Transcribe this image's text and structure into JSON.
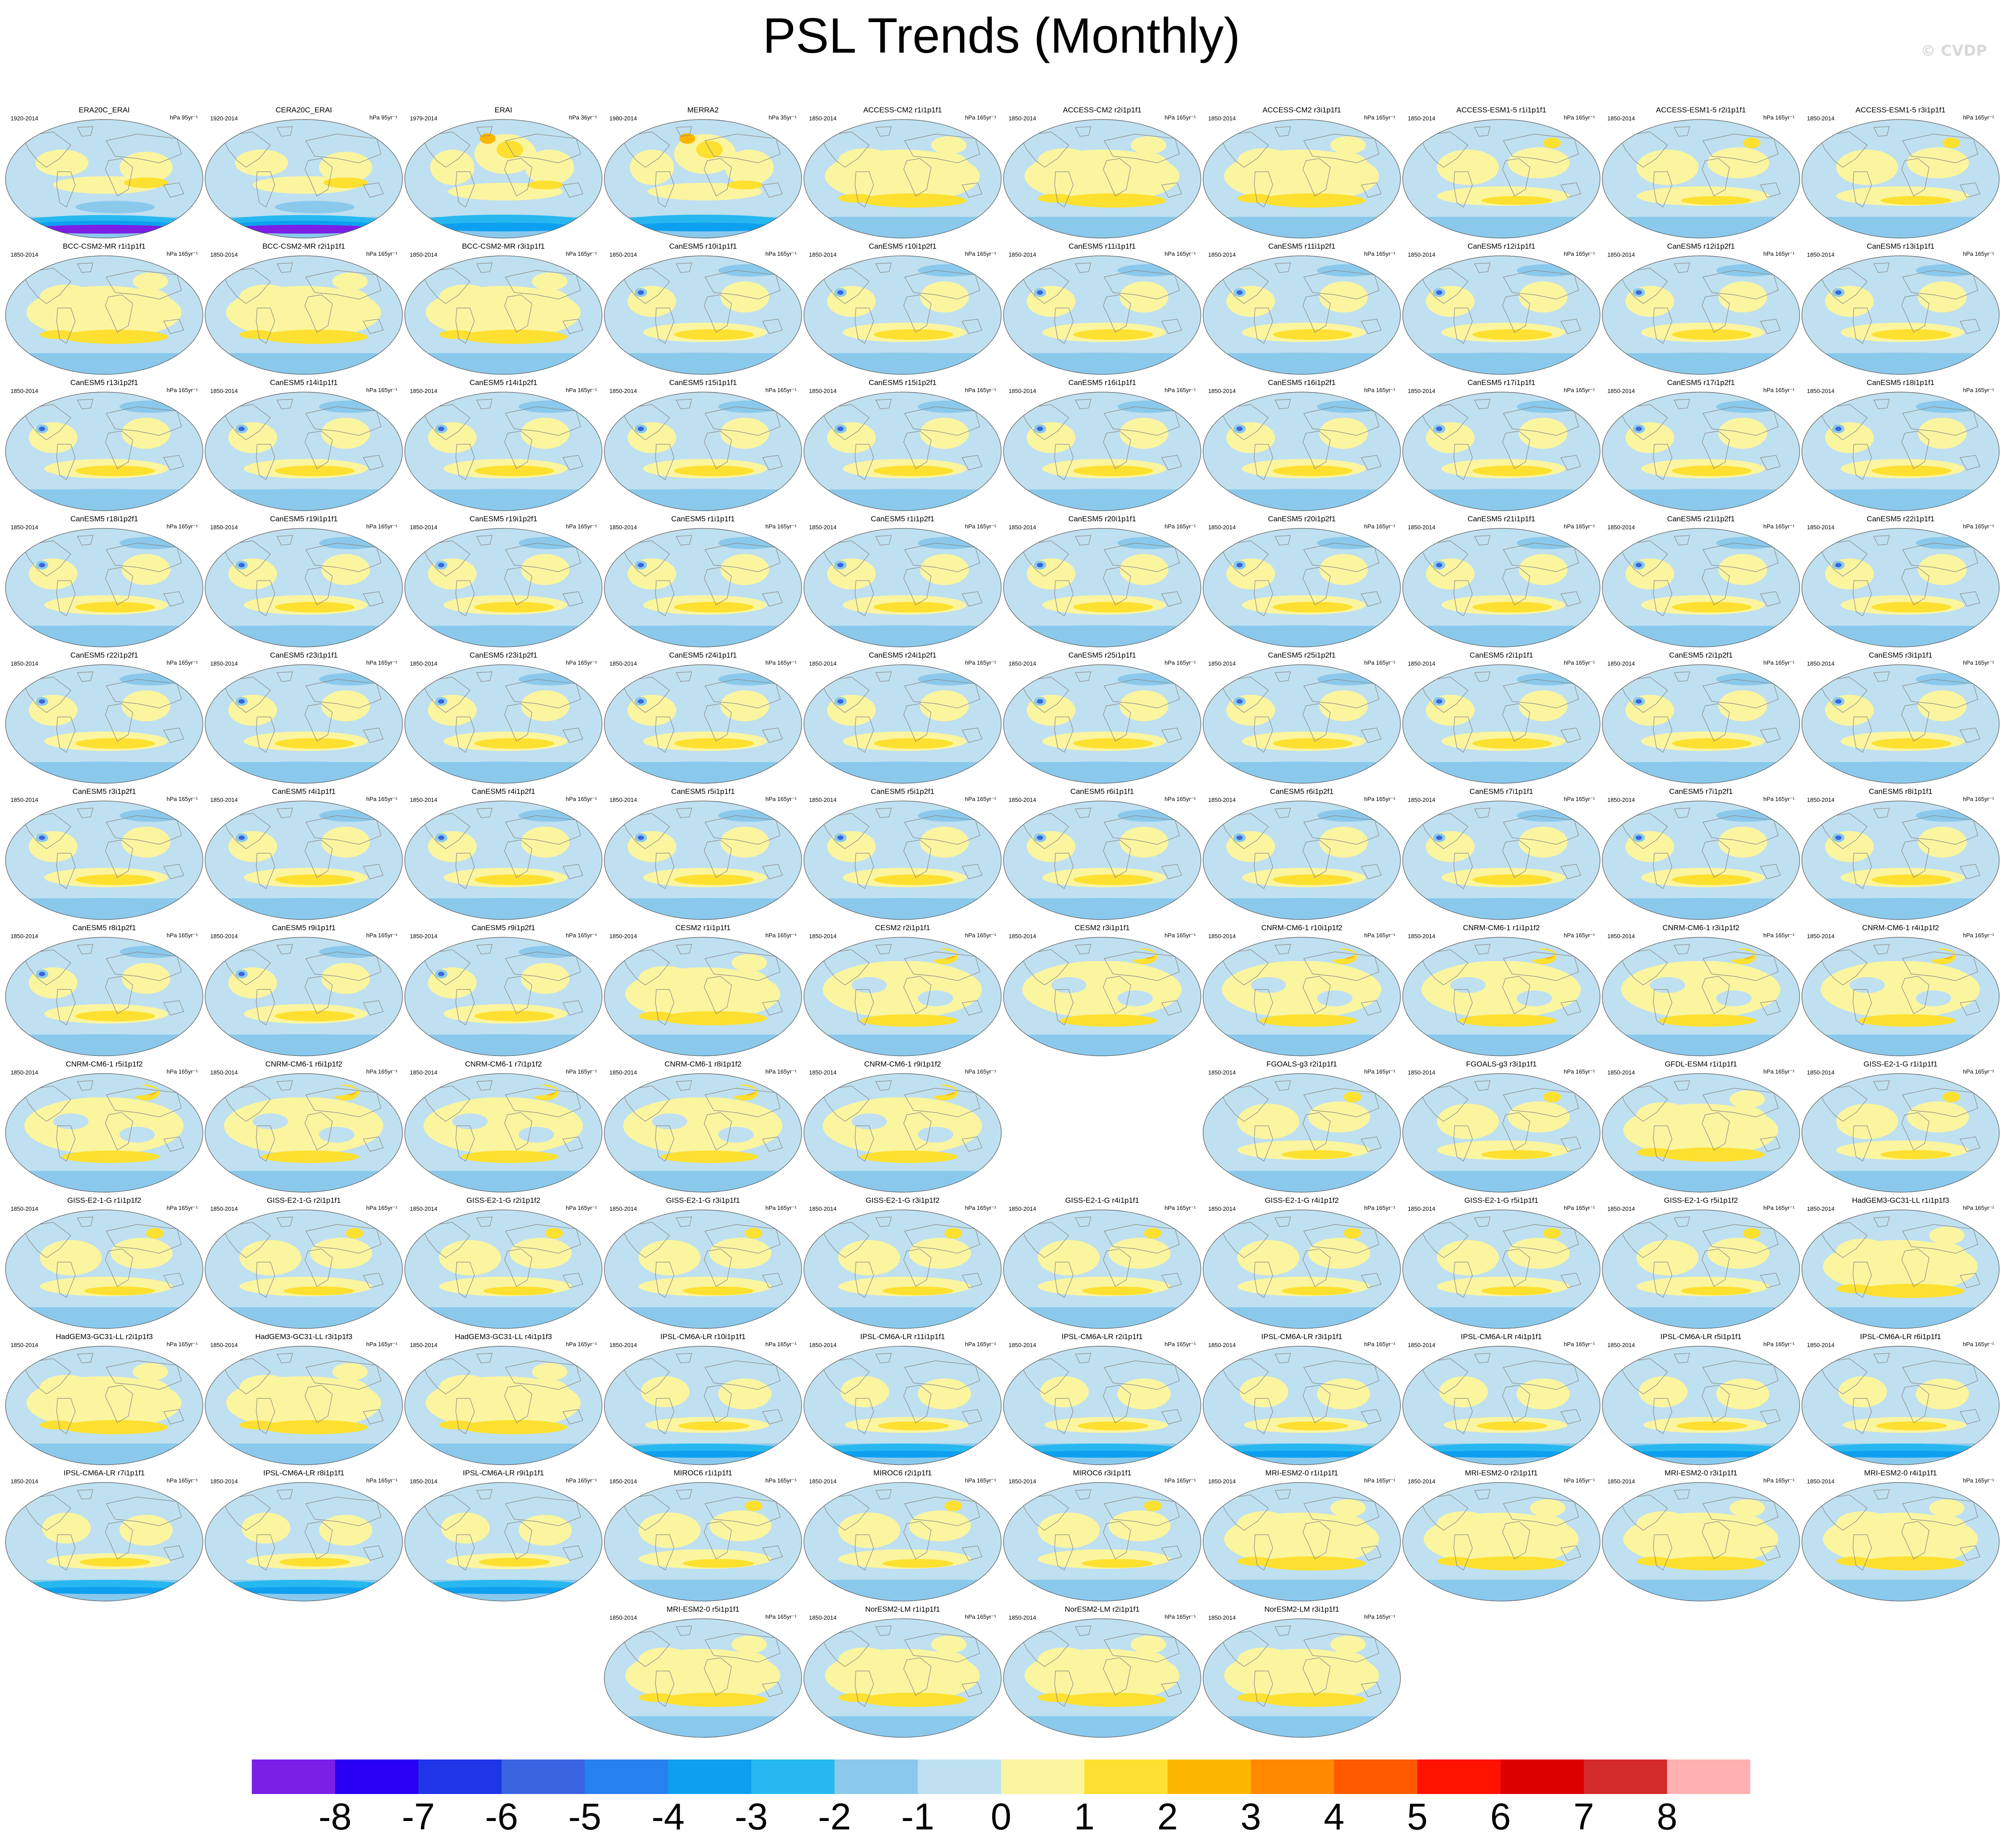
{
  "header": {
    "title": "PSL Trends (Monthly)",
    "watermark": "© CVDP"
  },
  "chart_data": {
    "type": "map-panels",
    "title": "PSL Trends (Monthly)",
    "units_label": "hPa yr⁻¹",
    "legend_placement": "bottom",
    "colorbar": {
      "labels": [
        "-8",
        "-7",
        "-6",
        "-5",
        "-4",
        "-3",
        "-2",
        "-1",
        "0",
        "1",
        "2",
        "3",
        "4",
        "5",
        "6",
        "7",
        "8"
      ],
      "colors": [
        "#7b1fe6",
        "#2a00f5",
        "#1f35e8",
        "#3a65e0",
        "#2680ee",
        "#0ea0f0",
        "#27b8f0",
        "#8ac9ec",
        "#bfe0f0",
        "#fbf5a0",
        "#fde030",
        "#fdb600",
        "#ff8a00",
        "#ff5a00",
        "#ff1200",
        "#dd0000",
        "#d32a2a",
        "#ffb0b0"
      ]
    },
    "panels": [
      {
        "title": "ERA20C_ERAI",
        "years": "1920-2014",
        "units": "hPa 95yr⁻¹",
        "pattern": "obsA"
      },
      {
        "title": "CERA20C_ERAI",
        "years": "1920-2014",
        "units": "hPa 95yr⁻¹",
        "pattern": "obsA"
      },
      {
        "title": "ERAI",
        "years": "1979-2014",
        "units": "hPa 36yr⁻¹",
        "pattern": "obsB"
      },
      {
        "title": "MERRA2",
        "years": "1980-2014",
        "units": "hPa 35yr⁻¹",
        "pattern": "obsB"
      },
      {
        "title": "ACCESS-CM2 r1i1p1f1",
        "years": "1850-2014",
        "units": "hPa 165yr⁻¹",
        "pattern": "warm"
      },
      {
        "title": "ACCESS-CM2 r2i1p1f1",
        "years": "1850-2014",
        "units": "hPa 165yr⁻¹",
        "pattern": "warm"
      },
      {
        "title": "ACCESS-CM2 r3i1p1f1",
        "years": "1850-2014",
        "units": "hPa 165yr⁻¹",
        "pattern": "warm"
      },
      {
        "title": "ACCESS-ESM1-5 r1i1p1f1",
        "years": "1850-2014",
        "units": "hPa 165yr⁻¹",
        "pattern": "mixed"
      },
      {
        "title": "ACCESS-ESM1-5 r2i1p1f1",
        "years": "1850-2014",
        "units": "hPa 165yr⁻¹",
        "pattern": "mixed"
      },
      {
        "title": "ACCESS-ESM1-5 r3i1p1f1",
        "years": "1850-2014",
        "units": "hPa 165yr⁻¹",
        "pattern": "mixed"
      },
      {
        "title": "BCC-CSM2-MR r1i1p1f1",
        "years": "1850-2014",
        "units": "hPa 165yr⁻¹",
        "pattern": "warm"
      },
      {
        "title": "BCC-CSM2-MR r2i1p1f1",
        "years": "1850-2014",
        "units": "hPa 165yr⁻¹",
        "pattern": "warm"
      },
      {
        "title": "BCC-CSM2-MR r3i1p1f1",
        "years": "1850-2014",
        "units": "hPa 165yr⁻¹",
        "pattern": "warm"
      },
      {
        "title": "CanESM5 r10i1p1f1",
        "years": "1850-2014",
        "units": "hPa 165yr⁻¹",
        "pattern": "canesm"
      },
      {
        "title": "CanESM5 r10i1p2f1",
        "years": "1850-2014",
        "units": "hPa 165yr⁻¹",
        "pattern": "canesm"
      },
      {
        "title": "CanESM5 r11i1p1f1",
        "years": "1850-2014",
        "units": "hPa 165yr⁻¹",
        "pattern": "canesm"
      },
      {
        "title": "CanESM5 r11i1p2f1",
        "years": "1850-2014",
        "units": "hPa 165yr⁻¹",
        "pattern": "canesm"
      },
      {
        "title": "CanESM5 r12i1p1f1",
        "years": "1850-2014",
        "units": "hPa 165yr⁻¹",
        "pattern": "canesm"
      },
      {
        "title": "CanESM5 r12i1p2f1",
        "years": "1850-2014",
        "units": "hPa 165yr⁻¹",
        "pattern": "canesm"
      },
      {
        "title": "CanESM5 r13i1p1f1",
        "years": "1850-2014",
        "units": "hPa 165yr⁻¹",
        "pattern": "canesm"
      },
      {
        "title": "CanESM5 r13i1p2f1",
        "years": "1850-2014",
        "units": "hPa 165yr⁻¹",
        "pattern": "canesm"
      },
      {
        "title": "CanESM5 r14i1p1f1",
        "years": "1850-2014",
        "units": "hPa 165yr⁻¹",
        "pattern": "canesm"
      },
      {
        "title": "CanESM5 r14i1p2f1",
        "years": "1850-2014",
        "units": "hPa 165yr⁻¹",
        "pattern": "canesm"
      },
      {
        "title": "CanESM5 r15i1p1f1",
        "years": "1850-2014",
        "units": "hPa 165yr⁻¹",
        "pattern": "canesm"
      },
      {
        "title": "CanESM5 r15i1p2f1",
        "years": "1850-2014",
        "units": "hPa 165yr⁻¹",
        "pattern": "canesm"
      },
      {
        "title": "CanESM5 r16i1p1f1",
        "years": "1850-2014",
        "units": "hPa 165yr⁻¹",
        "pattern": "canesm"
      },
      {
        "title": "CanESM5 r16i1p2f1",
        "years": "1850-2014",
        "units": "hPa 165yr⁻¹",
        "pattern": "canesm"
      },
      {
        "title": "CanESM5 r17i1p1f1",
        "years": "1850-2014",
        "units": "hPa 165yr⁻¹",
        "pattern": "canesm"
      },
      {
        "title": "CanESM5 r17i1p2f1",
        "years": "1850-2014",
        "units": "hPa 165yr⁻¹",
        "pattern": "canesm"
      },
      {
        "title": "CanESM5 r18i1p1f1",
        "years": "1850-2014",
        "units": "hPa 165yr⁻¹",
        "pattern": "canesm"
      },
      {
        "title": "CanESM5 r18i1p2f1",
        "years": "1850-2014",
        "units": "hPa 165yr⁻¹",
        "pattern": "canesm"
      },
      {
        "title": "CanESM5 r19i1p1f1",
        "years": "1850-2014",
        "units": "hPa 165yr⁻¹",
        "pattern": "canesm"
      },
      {
        "title": "CanESM5 r19i1p2f1",
        "years": "1850-2014",
        "units": "hPa 165yr⁻¹",
        "pattern": "canesm"
      },
      {
        "title": "CanESM5 r1i1p1f1",
        "years": "1850-2014",
        "units": "hPa 165yr⁻¹",
        "pattern": "canesm"
      },
      {
        "title": "CanESM5 r1i1p2f1",
        "years": "1850-2014",
        "units": "hPa 165yr⁻¹",
        "pattern": "canesm"
      },
      {
        "title": "CanESM5 r20i1p1f1",
        "years": "1850-2014",
        "units": "hPa 165yr⁻¹",
        "pattern": "canesm"
      },
      {
        "title": "CanESM5 r20i1p2f1",
        "years": "1850-2014",
        "units": "hPa 165yr⁻¹",
        "pattern": "canesm"
      },
      {
        "title": "CanESM5 r21i1p1f1",
        "years": "1850-2014",
        "units": "hPa 165yr⁻¹",
        "pattern": "canesm"
      },
      {
        "title": "CanESM5 r21i1p2f1",
        "years": "1850-2014",
        "units": "hPa 165yr⁻¹",
        "pattern": "canesm"
      },
      {
        "title": "CanESM5 r22i1p1f1",
        "years": "1850-2014",
        "units": "hPa 165yr⁻¹",
        "pattern": "canesm"
      },
      {
        "title": "CanESM5 r22i1p2f1",
        "years": "1850-2014",
        "units": "hPa 165yr⁻¹",
        "pattern": "canesm"
      },
      {
        "title": "CanESM5 r23i1p1f1",
        "years": "1850-2014",
        "units": "hPa 165yr⁻¹",
        "pattern": "canesm"
      },
      {
        "title": "CanESM5 r23i1p2f1",
        "years": "1850-2014",
        "units": "hPa 165yr⁻¹",
        "pattern": "canesm"
      },
      {
        "title": "CanESM5 r24i1p1f1",
        "years": "1850-2014",
        "units": "hPa 165yr⁻¹",
        "pattern": "canesm"
      },
      {
        "title": "CanESM5 r24i1p2f1",
        "years": "1850-2014",
        "units": "hPa 165yr⁻¹",
        "pattern": "canesm"
      },
      {
        "title": "CanESM5 r25i1p1f1",
        "years": "1850-2014",
        "units": "hPa 165yr⁻¹",
        "pattern": "canesm"
      },
      {
        "title": "CanESM5 r25i1p2f1",
        "years": "1850-2014",
        "units": "hPa 165yr⁻¹",
        "pattern": "canesm"
      },
      {
        "title": "CanESM5 r2i1p1f1",
        "years": "1850-2014",
        "units": "hPa 165yr⁻¹",
        "pattern": "canesm"
      },
      {
        "title": "CanESM5 r2i1p2f1",
        "years": "1850-2014",
        "units": "hPa 165yr⁻¹",
        "pattern": "canesm"
      },
      {
        "title": "CanESM5 r3i1p1f1",
        "years": "1850-2014",
        "units": "hPa 165yr⁻¹",
        "pattern": "canesm"
      },
      {
        "title": "CanESM5 r3i1p2f1",
        "years": "1850-2014",
        "units": "hPa 165yr⁻¹",
        "pattern": "canesm"
      },
      {
        "title": "CanESM5 r4i1p1f1",
        "years": "1850-2014",
        "units": "hPa 165yr⁻¹",
        "pattern": "canesm"
      },
      {
        "title": "CanESM5 r4i1p2f1",
        "years": "1850-2014",
        "units": "hPa 165yr⁻¹",
        "pattern": "canesm"
      },
      {
        "title": "CanESM5 r5i1p1f1",
        "years": "1850-2014",
        "units": "hPa 165yr⁻¹",
        "pattern": "canesm"
      },
      {
        "title": "CanESM5 r5i1p2f1",
        "years": "1850-2014",
        "units": "hPa 165yr⁻¹",
        "pattern": "canesm"
      },
      {
        "title": "CanESM5 r6i1p1f1",
        "years": "1850-2014",
        "units": "hPa 165yr⁻¹",
        "pattern": "canesm"
      },
      {
        "title": "CanESM5 r6i1p2f1",
        "years": "1850-2014",
        "units": "hPa 165yr⁻¹",
        "pattern": "canesm"
      },
      {
        "title": "CanESM5 r7i1p1f1",
        "years": "1850-2014",
        "units": "hPa 165yr⁻¹",
        "pattern": "canesm"
      },
      {
        "title": "CanESM5 r7i1p2f1",
        "years": "1850-2014",
        "units": "hPa 165yr⁻¹",
        "pattern": "canesm"
      },
      {
        "title": "CanESM5 r8i1p1f1",
        "years": "1850-2014",
        "units": "hPa 165yr⁻¹",
        "pattern": "canesm"
      },
      {
        "title": "CanESM5 r8i1p2f1",
        "years": "1850-2014",
        "units": "hPa 165yr⁻¹",
        "pattern": "canesm"
      },
      {
        "title": "CanESM5 r9i1p1f1",
        "years": "1850-2014",
        "units": "hPa 165yr⁻¹",
        "pattern": "canesm"
      },
      {
        "title": "CanESM5 r9i1p2f1",
        "years": "1850-2014",
        "units": "hPa 165yr⁻¹",
        "pattern": "canesm"
      },
      {
        "title": "CESM2 r1i1p1f1",
        "years": "1850-2014",
        "units": "hPa 165yr⁻¹",
        "pattern": "warm"
      },
      {
        "title": "CESM2 r2i1p1f1",
        "years": "1850-2014",
        "units": "hPa 165yr⁻¹",
        "pattern": "cnrm"
      },
      {
        "title": "CESM2 r3i1p1f1",
        "years": "1850-2014",
        "units": "hPa 165yr⁻¹",
        "pattern": "cnrm"
      },
      {
        "title": "CNRM-CM6-1 r10i1p1f2",
        "years": "1850-2014",
        "units": "hPa 165yr⁻¹",
        "pattern": "cnrm"
      },
      {
        "title": "CNRM-CM6-1 r1i1p1f2",
        "years": "1850-2014",
        "units": "hPa 165yr⁻¹",
        "pattern": "cnrm"
      },
      {
        "title": "CNRM-CM6-1 r3i1p1f2",
        "years": "1850-2014",
        "units": "hPa 165yr⁻¹",
        "pattern": "cnrm"
      },
      {
        "title": "CNRM-CM6-1 r4i1p1f2",
        "years": "1850-2014",
        "units": "hPa 165yr⁻¹",
        "pattern": "cnrm"
      },
      {
        "title": "CNRM-CM6-1 r5i1p1f2",
        "years": "1850-2014",
        "units": "hPa 165yr⁻¹",
        "pattern": "cnrm"
      },
      {
        "title": "CNRM-CM6-1 r6i1p1f2",
        "years": "1850-2014",
        "units": "hPa 165yr⁻¹",
        "pattern": "cnrm"
      },
      {
        "title": "CNRM-CM6-1 r7i1p1f2",
        "years": "1850-2014",
        "units": "hPa 165yr⁻¹",
        "pattern": "cnrm"
      },
      {
        "title": "CNRM-CM6-1 r8i1p1f2",
        "years": "1850-2014",
        "units": "hPa 165yr⁻¹",
        "pattern": "cnrm"
      },
      {
        "title": "CNRM-CM6-1 r9i1p1f2",
        "years": "1850-2014",
        "units": "hPa 165yr⁻¹",
        "pattern": "cnrm"
      },
      null,
      {
        "title": "FGOALS-g3 r2i1p1f1",
        "years": "1850-2014",
        "units": "hPa 165yr⁻¹",
        "pattern": "mixed"
      },
      {
        "title": "FGOALS-g3 r3i1p1f1",
        "years": "1850-2014",
        "units": "hPa 165yr⁻¹",
        "pattern": "mixed"
      },
      {
        "title": "GFDL-ESM4 r1i1p1f1",
        "years": "1850-2014",
        "units": "hPa 165yr⁻¹",
        "pattern": "warm"
      },
      {
        "title": "GISS-E2-1-G r1i1p1f1",
        "years": "1850-2014",
        "units": "hPa 165yr⁻¹",
        "pattern": "mixed"
      },
      {
        "title": "GISS-E2-1-G r1i1p1f2",
        "years": "1850-2014",
        "units": "hPa 165yr⁻¹",
        "pattern": "mixed"
      },
      {
        "title": "GISS-E2-1-G r2i1p1f1",
        "years": "1850-2014",
        "units": "hPa 165yr⁻¹",
        "pattern": "mixed"
      },
      {
        "title": "GISS-E2-1-G r2i1p1f2",
        "years": "1850-2014",
        "units": "hPa 165yr⁻¹",
        "pattern": "mixed"
      },
      {
        "title": "GISS-E2-1-G r3i1p1f1",
        "years": "1850-2014",
        "units": "hPa 165yr⁻¹",
        "pattern": "mixed"
      },
      {
        "title": "GISS-E2-1-G r3i1p1f2",
        "years": "1850-2014",
        "units": "hPa 165yr⁻¹",
        "pattern": "mixed"
      },
      {
        "title": "GISS-E2-1-G r4i1p1f1",
        "years": "1850-2014",
        "units": "hPa 165yr⁻¹",
        "pattern": "mixed"
      },
      {
        "title": "GISS-E2-1-G r4i1p1f2",
        "years": "1850-2014",
        "units": "hPa 165yr⁻¹",
        "pattern": "mixed"
      },
      {
        "title": "GISS-E2-1-G r5i1p1f1",
        "years": "1850-2014",
        "units": "hPa 165yr⁻¹",
        "pattern": "mixed"
      },
      {
        "title": "GISS-E2-1-G r5i1p1f2",
        "years": "1850-2014",
        "units": "hPa 165yr⁻¹",
        "pattern": "mixed"
      },
      {
        "title": "HadGEM3-GC31-LL r1i1p1f3",
        "years": "1850-2014",
        "units": "hPa 165yr⁻¹",
        "pattern": "warm"
      },
      {
        "title": "HadGEM3-GC31-LL r2i1p1f3",
        "years": "1850-2014",
        "units": "hPa 165yr⁻¹",
        "pattern": "warm"
      },
      {
        "title": "HadGEM3-GC31-LL r3i1p1f3",
        "years": "1850-2014",
        "units": "hPa 165yr⁻¹",
        "pattern": "warm"
      },
      {
        "title": "HadGEM3-GC31-LL r4i1p1f3",
        "years": "1850-2014",
        "units": "hPa 165yr⁻¹",
        "pattern": "warm"
      },
      {
        "title": "IPSL-CM6A-LR r10i1p1f1",
        "years": "1850-2014",
        "units": "hPa 165yr⁻¹",
        "pattern": "ipsl"
      },
      {
        "title": "IPSL-CM6A-LR r11i1p1f1",
        "years": "1850-2014",
        "units": "hPa 165yr⁻¹",
        "pattern": "ipsl"
      },
      {
        "title": "IPSL-CM6A-LR r2i1p1f1",
        "years": "1850-2014",
        "units": "hPa 165yr⁻¹",
        "pattern": "ipsl"
      },
      {
        "title": "IPSL-CM6A-LR r3i1p1f1",
        "years": "1850-2014",
        "units": "hPa 165yr⁻¹",
        "pattern": "ipsl"
      },
      {
        "title": "IPSL-CM6A-LR r4i1p1f1",
        "years": "1850-2014",
        "units": "hPa 165yr⁻¹",
        "pattern": "ipsl"
      },
      {
        "title": "IPSL-CM6A-LR r5i1p1f1",
        "years": "1850-2014",
        "units": "hPa 165yr⁻¹",
        "pattern": "ipsl"
      },
      {
        "title": "IPSL-CM6A-LR r6i1p1f1",
        "years": "1850-2014",
        "units": "hPa 165yr⁻¹",
        "pattern": "ipsl"
      },
      {
        "title": "IPSL-CM6A-LR r7i1p1f1",
        "years": "1850-2014",
        "units": "hPa 165yr⁻¹",
        "pattern": "ipsl"
      },
      {
        "title": "IPSL-CM6A-LR r8i1p1f1",
        "years": "1850-2014",
        "units": "hPa 165yr⁻¹",
        "pattern": "ipsl"
      },
      {
        "title": "IPSL-CM6A-LR r9i1p1f1",
        "years": "1850-2014",
        "units": "hPa 165yr⁻¹",
        "pattern": "ipsl"
      },
      {
        "title": "MIROC6 r1i1p1f1",
        "years": "1850-2014",
        "units": "hPa 165yr⁻¹",
        "pattern": "mixed"
      },
      {
        "title": "MIROC6 r2i1p1f1",
        "years": "1850-2014",
        "units": "hPa 165yr⁻¹",
        "pattern": "mixed"
      },
      {
        "title": "MIROC6 r3i1p1f1",
        "years": "1850-2014",
        "units": "hPa 165yr⁻¹",
        "pattern": "mixed"
      },
      {
        "title": "MRI-ESM2-0 r1i1p1f1",
        "years": "1850-2014",
        "units": "hPa 165yr⁻¹",
        "pattern": "warm"
      },
      {
        "title": "MRI-ESM2-0 r2i1p1f1",
        "years": "1850-2014",
        "units": "hPa 165yr⁻¹",
        "pattern": "warm"
      },
      {
        "title": "MRI-ESM2-0 r3i1p1f1",
        "years": "1850-2014",
        "units": "hPa 165yr⁻¹",
        "pattern": "warm"
      },
      {
        "title": "MRI-ESM2-0 r4i1p1f1",
        "years": "1850-2014",
        "units": "hPa 165yr⁻¹",
        "pattern": "warm"
      },
      null,
      null,
      null,
      {
        "title": "MRI-ESM2-0 r5i1p1f1",
        "years": "1850-2014",
        "units": "hPa 165yr⁻¹",
        "pattern": "warm"
      },
      {
        "title": "NorESM2-LM r1i1p1f1",
        "years": "1850-2014",
        "units": "hPa 165yr⁻¹",
        "pattern": "warm"
      },
      {
        "title": "NorESM2-LM r2i1p1f1",
        "years": "1850-2014",
        "units": "hPa 165yr⁻¹",
        "pattern": "warm"
      },
      {
        "title": "NorESM2-LM r3i1p1f1",
        "years": "1850-2014",
        "units": "hPa 165yr⁻¹",
        "pattern": "warm"
      }
    ]
  }
}
